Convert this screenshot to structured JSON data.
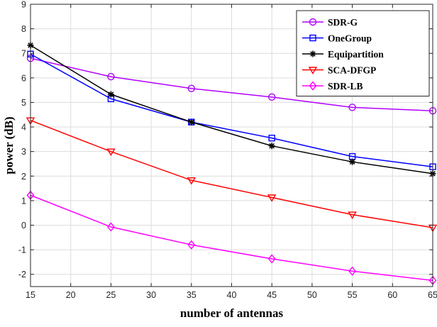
{
  "chart_data": {
    "type": "line",
    "title": "",
    "xlabel": "number of antennas",
    "ylabel": "power (dB)",
    "x": [
      15,
      25,
      35,
      45,
      55,
      65
    ],
    "xlim": [
      15,
      65
    ],
    "ylim": [
      -2.5,
      9
    ],
    "xticks": [
      15,
      20,
      25,
      30,
      35,
      40,
      45,
      50,
      55,
      60,
      65
    ],
    "yticks": [
      -2,
      -1,
      0,
      1,
      2,
      3,
      4,
      5,
      6,
      7,
      8,
      9
    ],
    "grid": true,
    "legend_position": "top-right",
    "series": [
      {
        "name": "SDR-G",
        "color": "#b000ff",
        "marker": "circle",
        "values": [
          6.8,
          6.05,
          5.57,
          5.22,
          4.8,
          4.66
        ]
      },
      {
        "name": "OneGroup",
        "color": "#0000ff",
        "marker": "square",
        "values": [
          6.97,
          5.15,
          4.2,
          3.55,
          2.8,
          2.38
        ]
      },
      {
        "name": "Equipartition",
        "color": "#000000",
        "marker": "asterisk",
        "values": [
          7.33,
          5.33,
          4.2,
          3.23,
          2.58,
          2.1
        ]
      },
      {
        "name": "SCA-DFGP",
        "color": "#ff0000",
        "marker": "triangle-down",
        "values": [
          4.27,
          3.0,
          1.83,
          1.13,
          0.43,
          -0.1
        ]
      },
      {
        "name": "SDR-LB",
        "color": "#ff00ff",
        "marker": "diamond",
        "values": [
          1.22,
          -0.07,
          -0.8,
          -1.37,
          -1.87,
          -2.25
        ]
      }
    ]
  }
}
